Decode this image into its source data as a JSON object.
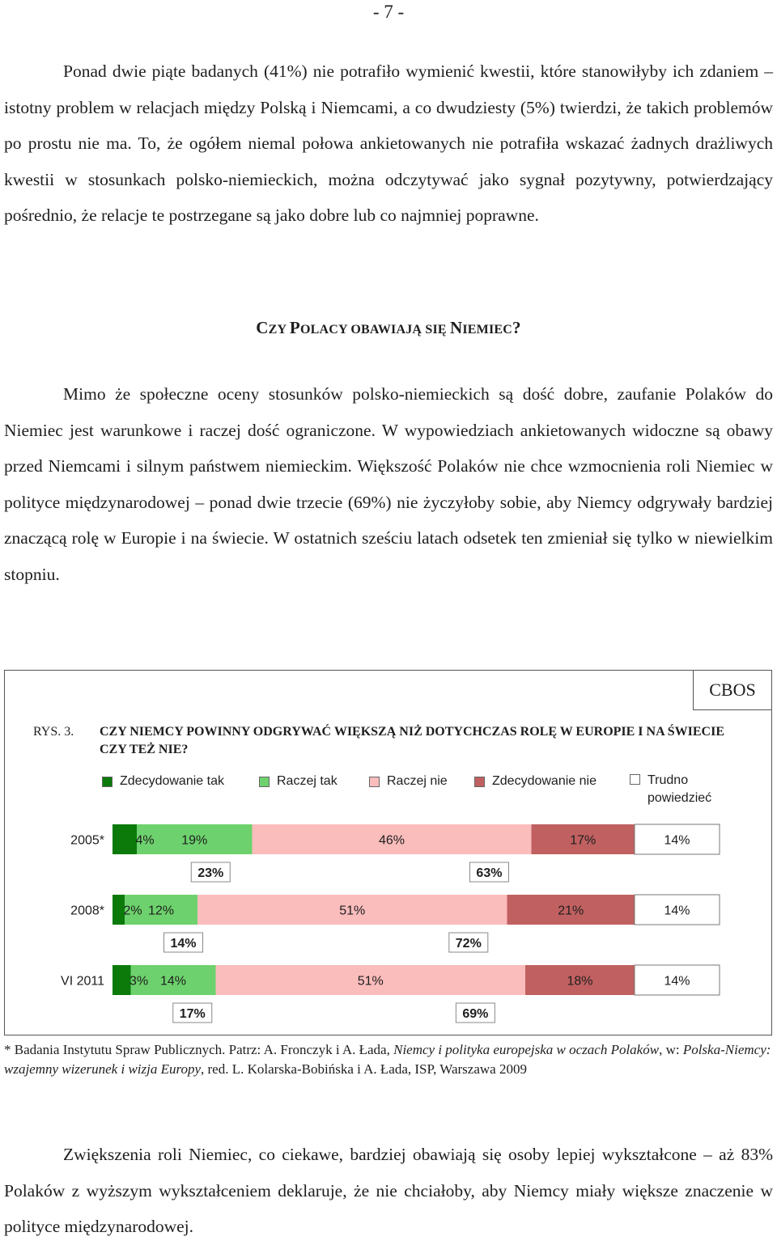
{
  "page_number": "- 7 -",
  "para1": {
    "text": "Ponad dwie piąte badanych (41%) nie potrafiło wymienić  kwestii, które stanowiłyby ich zdaniem – istotny problem w relacjach między Polską i Niemcami, a co dwudziesty (5%) twierdzi, że takich problemów po prostu nie ma. To, że ogółem niemal połowa ankietowanych nie potrafiła wskazać żadnych drażliwych kwestii w stosunkach polsko-niemieckich, można odczytywać jako sygnał pozytywny, potwierdzający pośrednio, że relacje te postrzegane są jako dobre lub co najmniej poprawne."
  },
  "heading": {
    "c1": "C",
    "w1": "ZY ",
    "c2": "P",
    "w2": "OLACY OBAWIAJĄ SIĘ ",
    "c3": "N",
    "w3": "IEMIEC",
    "end": "?"
  },
  "para2": {
    "text": "Mimo że społeczne oceny stosunków polsko-niemieckich są dość dobre, zaufanie Polaków do Niemiec jest warunkowe i raczej dość ograniczone. W wypowiedziach ankietowanych widoczne są obawy przed Niemcami i silnym państwem niemieckim. Większość Polaków nie chce wzmocnienia roli Niemiec w polityce międzynarodowej – ponad dwie trzecie (69%) nie życzyłoby sobie, aby Niemcy odgrywały bardziej znaczącą rolę w Europie i na świecie. W ostatnich sześciu latach odsetek ten zmieniał się tylko w niewielkim stopniu."
  },
  "figure": {
    "source": "CBOS",
    "label": "RYS. 3.",
    "title": "CZY NIEMCY POWINNY ODGRYWAĆ WIĘKSZĄ NIŻ DOTYCHCZAS ROLĘ W EUROPIE I NA ŚWIECIE CZY TEŻ NIE?"
  },
  "chart_data": {
    "type": "bar",
    "stacked": true,
    "orientation": "horizontal",
    "categories": [
      "2005*",
      "2008*",
      "VI 2011"
    ],
    "series": [
      {
        "name": "Zdecydowanie tak",
        "color": "#0b7a0b",
        "values": [
          4,
          2,
          3
        ],
        "labels": [
          "4%",
          "2%",
          "3%"
        ]
      },
      {
        "name": "Raczej tak",
        "color": "#6dd26d",
        "values": [
          19,
          12,
          14
        ],
        "labels": [
          "19%",
          "12%",
          "14%"
        ]
      },
      {
        "name": "Raczej nie",
        "color": "#fbbcbc",
        "values": [
          46,
          51,
          51
        ],
        "labels": [
          "46%",
          "51%",
          "51%"
        ]
      },
      {
        "name": "Zdecydowanie nie",
        "color": "#c06060",
        "values": [
          17,
          21,
          18
        ],
        "labels": [
          "17%",
          "21%",
          "18%"
        ]
      },
      {
        "name_line1": "Trudno",
        "name_line2": "powiedzieć",
        "color": "#ffffff",
        "values": [
          14,
          14,
          14
        ],
        "labels": [
          "14%",
          "14%",
          "14%"
        ]
      }
    ],
    "totals_yes": [
      "23%",
      "14%",
      "17%"
    ],
    "totals_no": [
      "63%",
      "72%",
      "69%"
    ],
    "xlim": [
      0,
      100
    ],
    "legend_position": "top"
  },
  "footnote": {
    "part1": "* Badania Instytutu Spraw Publicznych. Patrz: A. Fronczyk i A. Łada, ",
    "italic1": "Niemcy i polityka europejska w oczach Polaków",
    "part2": ", w: ",
    "italic2": "Polska-Niemcy: wzajemny wizerunek i wizja Europy",
    "part3": ", red. L. Kolarska-Bobińska i A. Łada, ISP, Warszawa 2009"
  },
  "para3": {
    "text": "Zwiększenia roli Niemiec, co ciekawe, bardziej obawiają się osoby lepiej wykształcone – aż 83% Polaków z wyższym wykształceniem deklaruje, że nie chciałoby, aby Niemcy miały większe znaczenie w polityce międzynarodowej."
  }
}
